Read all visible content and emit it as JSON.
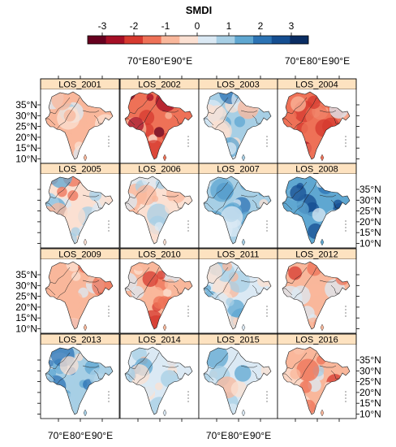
{
  "legend": {
    "title": "SMDI",
    "ticks": [
      "-3",
      "-2",
      "-1",
      "0",
      "1",
      "2",
      "3"
    ],
    "colors": [
      "#67001f",
      "#a50f26",
      "#d6392f",
      "#ee7157",
      "#f9b79b",
      "#fbe0d2",
      "#dbe9f4",
      "#a7cfe5",
      "#5fa7d1",
      "#2c73b4",
      "#154e91",
      "#0a2d63"
    ]
  },
  "axes": {
    "lat_ticks": [
      "35°N",
      "30°N",
      "25°N",
      "20°N",
      "15°N",
      "10°N"
    ],
    "lon_ticks": [
      "70°E",
      "80°E",
      "90°E"
    ]
  },
  "panels": [
    {
      "label": "LOS_2001",
      "mean": -0.6
    },
    {
      "label": "LOS_2002",
      "mean": -1.4
    },
    {
      "label": "LOS_2003",
      "mean": 0.5
    },
    {
      "label": "LOS_2004",
      "mean": -1.1
    },
    {
      "label": "LOS_2005",
      "mean": -0.1
    },
    {
      "label": "LOS_2006",
      "mean": -0.2
    },
    {
      "label": "LOS_2007",
      "mean": 0.9
    },
    {
      "label": "LOS_2008",
      "mean": 1.2
    },
    {
      "label": "LOS_2009",
      "mean": -0.6
    },
    {
      "label": "LOS_2010",
      "mean": -0.8
    },
    {
      "label": "LOS_2011",
      "mean": 0.4
    },
    {
      "label": "LOS_2012",
      "mean": -0.9
    },
    {
      "label": "LOS_2013",
      "mean": 0.8
    },
    {
      "label": "LOS_2014",
      "mean": 0.4
    },
    {
      "label": "LOS_2015",
      "mean": 0.2
    },
    {
      "label": "LOS_2016",
      "mean": -0.6
    }
  ]
}
